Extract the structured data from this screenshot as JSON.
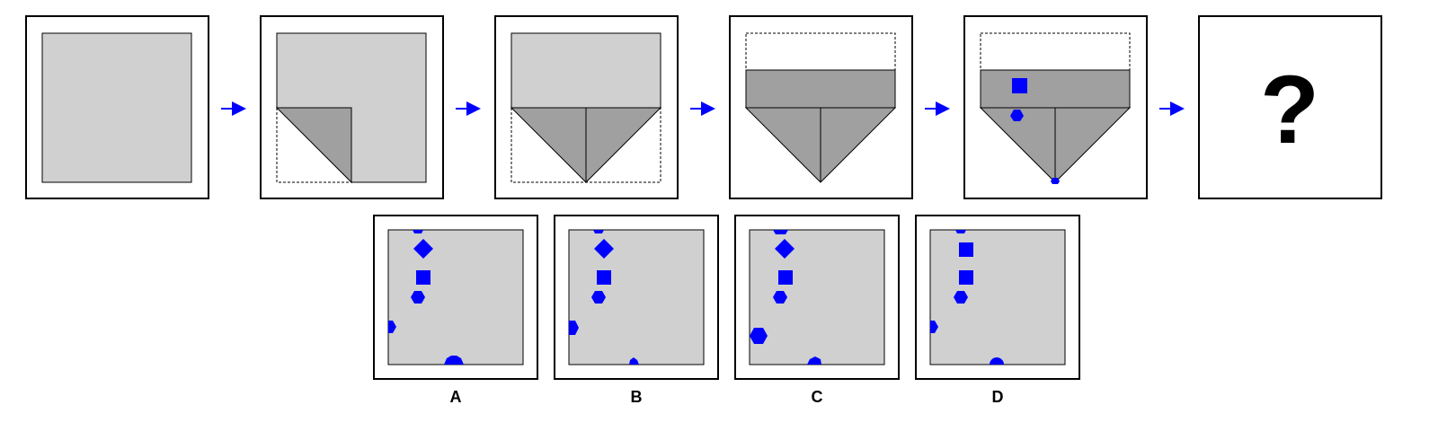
{
  "puzzle": {
    "question_mark": "?",
    "colors": {
      "paper": "#d0d0d0",
      "folded_paper": "#a0a0a0",
      "frame_stroke": "#000000",
      "punch": "#0000ff",
      "arrow": "#0000ff",
      "background": "#ffffff"
    },
    "steps": [
      {
        "name": "unfolded-square"
      },
      {
        "name": "corner-folded"
      },
      {
        "name": "both-corners-folded"
      },
      {
        "name": "top-strip-folded"
      },
      {
        "name": "holes-punched",
        "punches": [
          "square",
          "hexagon",
          "small-hexagon-at-tip"
        ]
      },
      {
        "name": "answer-placeholder"
      }
    ],
    "options": [
      {
        "label": "A"
      },
      {
        "label": "B"
      },
      {
        "label": "C"
      },
      {
        "label": "D"
      }
    ]
  }
}
